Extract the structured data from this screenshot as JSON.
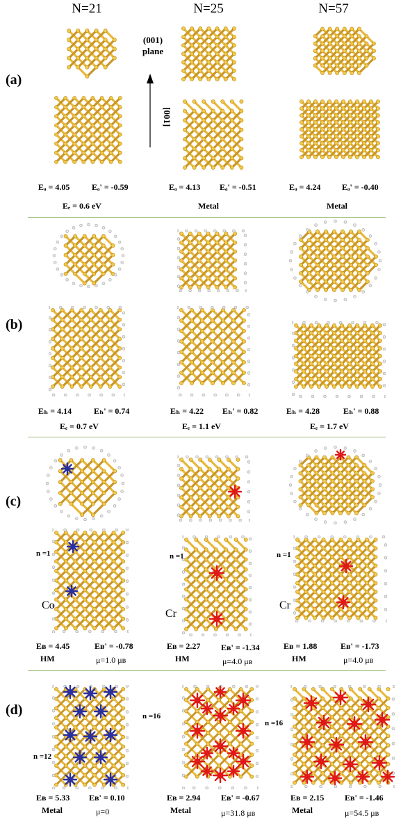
{
  "headers": [
    "N=21",
    "N=25",
    "N=57"
  ],
  "panels": [
    "(a)",
    "(b)",
    "(c)",
    "(d)"
  ],
  "annotations": {
    "plane": "(001)\nplane",
    "axis": "[001]"
  },
  "row_a": {
    "c1": {
      "e1": "Eₐ = 4.05",
      "e2": "Eₐ' = -0.59",
      "gap": "Eₑ = 0.6 eV"
    },
    "c2": {
      "e1": "Eₐ = 4.13",
      "e2": "Eₐ' = -0.51",
      "gap": "Metal"
    },
    "c3": {
      "e1": "Eₐ = 4.24",
      "e2": "Eₐ' = -0.40",
      "gap": "Metal"
    }
  },
  "row_b": {
    "c1": {
      "e1": "Eₕ = 4.14",
      "e2": "Eₕ' = 0.74",
      "gap": "Eₑ = 0.7 eV"
    },
    "c2": {
      "e1": "Eₕ = 4.22",
      "e2": "Eₕ' = 0.82",
      "gap": "Eₑ = 1.1 eV"
    },
    "c3": {
      "e1": "Eₕ = 4.28",
      "e2": "Eₕ' = 0.88",
      "gap": "Eₑ = 1.7 eV"
    }
  },
  "row_c": {
    "c1": {
      "n": "n =1",
      "element": "Co",
      "e1": "Eʙ = 4.45",
      "e2": "Eʙ' = -0.78",
      "state": "HM",
      "mu": "μ=1.0 μʙ"
    },
    "c2": {
      "n": "n =1",
      "element": "Cr",
      "e1": "Eʙ = 2.27",
      "e2": "Eʙ' = -1.34",
      "state": "HM",
      "mu": "μ=4.0 μʙ"
    },
    "c3": {
      "n": "n =1",
      "element": "Cr",
      "e1": "Eʙ = 1.88",
      "e2": "Eʙ' = -1.73",
      "state": "HM",
      "mu": "μ=4.0 μʙ"
    }
  },
  "row_d": {
    "c1": {
      "n": "n =12",
      "e1": "Eʙ = 5.33",
      "e2": "Eʙ' = 0.10",
      "state": "Metal",
      "mu": "μ=0"
    },
    "c2": {
      "n": "n =16",
      "e1": "Eʙ = 2.94",
      "e2": "Eʙ' = -0.67",
      "state": "Metal",
      "mu": "μ=31.8 μʙ"
    },
    "c3": {
      "n": "n =16",
      "e1": "Eʙ = 2.15",
      "e2": "Eʙ' = -1.46",
      "state": "Metal",
      "mu": "μ=54.5 μʙ"
    }
  },
  "colors": {
    "silicon": "#e8b83a",
    "hydrogen": "#e6e6e6",
    "cobalt": "#2a2f9e",
    "chromium": "#e01818",
    "separator": "#9bbf7a"
  }
}
